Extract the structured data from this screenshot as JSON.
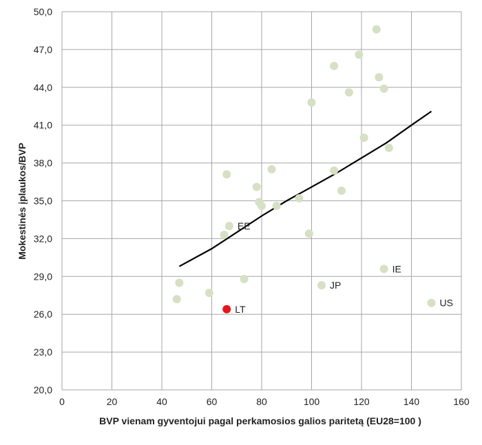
{
  "chart_data": {
    "type": "scatter",
    "title": "",
    "xlabel": "BVP vienam gyventojui pagal perkamosios galios paritetą (EU28=100 )",
    "ylabel": "Mokestinės įplaukos/BVP",
    "xlim": [
      0,
      160
    ],
    "ylim": [
      20,
      50
    ],
    "x_ticks": [
      0,
      20,
      40,
      60,
      80,
      100,
      120,
      140,
      160
    ],
    "y_ticks": [
      20,
      23,
      26,
      29,
      32,
      35,
      38,
      41,
      44,
      47,
      50
    ],
    "x_tick_labels": [
      "0",
      "20",
      "40",
      "60",
      "80",
      "100",
      "120",
      "140",
      "160"
    ],
    "y_tick_labels": [
      "20,0",
      "23,0",
      "26,0",
      "29,0",
      "32,0",
      "35,0",
      "38,0",
      "41,0",
      "44,0",
      "47,0",
      "50,0"
    ],
    "grid": true,
    "colors": {
      "points": "#d6e0c4",
      "highlight": "#e8141a",
      "trend": "#000000",
      "grid": "#a6a6a6"
    },
    "points": [
      {
        "x": 46,
        "y": 27.2,
        "label": ""
      },
      {
        "x": 47,
        "y": 28.5,
        "label": ""
      },
      {
        "x": 59,
        "y": 27.7,
        "label": ""
      },
      {
        "x": 65,
        "y": 32.3,
        "label": ""
      },
      {
        "x": 66,
        "y": 37.1,
        "label": ""
      },
      {
        "x": 67,
        "y": 33.0,
        "label": "EE"
      },
      {
        "x": 73,
        "y": 28.8,
        "label": ""
      },
      {
        "x": 78,
        "y": 36.1,
        "label": ""
      },
      {
        "x": 79,
        "y": 34.9,
        "label": ""
      },
      {
        "x": 80,
        "y": 34.6,
        "label": ""
      },
      {
        "x": 84,
        "y": 37.5,
        "label": ""
      },
      {
        "x": 86,
        "y": 34.6,
        "label": ""
      },
      {
        "x": 95,
        "y": 35.2,
        "label": ""
      },
      {
        "x": 99,
        "y": 32.4,
        "label": ""
      },
      {
        "x": 100,
        "y": 42.8,
        "label": ""
      },
      {
        "x": 104,
        "y": 28.3,
        "label": "JP"
      },
      {
        "x": 109,
        "y": 37.4,
        "label": ""
      },
      {
        "x": 109,
        "y": 45.7,
        "label": ""
      },
      {
        "x": 112,
        "y": 35.8,
        "label": ""
      },
      {
        "x": 115,
        "y": 43.6,
        "label": ""
      },
      {
        "x": 119,
        "y": 46.6,
        "label": ""
      },
      {
        "x": 121,
        "y": 40.0,
        "label": ""
      },
      {
        "x": 126,
        "y": 48.6,
        "label": ""
      },
      {
        "x": 127,
        "y": 44.8,
        "label": ""
      },
      {
        "x": 129,
        "y": 43.9,
        "label": ""
      },
      {
        "x": 129,
        "y": 29.6,
        "label": "IE"
      },
      {
        "x": 131,
        "y": 39.2,
        "label": ""
      },
      {
        "x": 148,
        "y": 26.9,
        "label": "US"
      }
    ],
    "highlight_points": [
      {
        "x": 66,
        "y": 26.4,
        "label": "LT"
      }
    ],
    "trendline": {
      "type": "polynomial",
      "x": [
        47,
        60,
        70,
        80,
        90,
        100,
        110,
        120,
        130,
        140,
        148
      ],
      "y": [
        29.8,
        31.2,
        32.5,
        33.8,
        35.0,
        36.1,
        37.2,
        38.4,
        39.6,
        41.0,
        42.1
      ]
    }
  }
}
